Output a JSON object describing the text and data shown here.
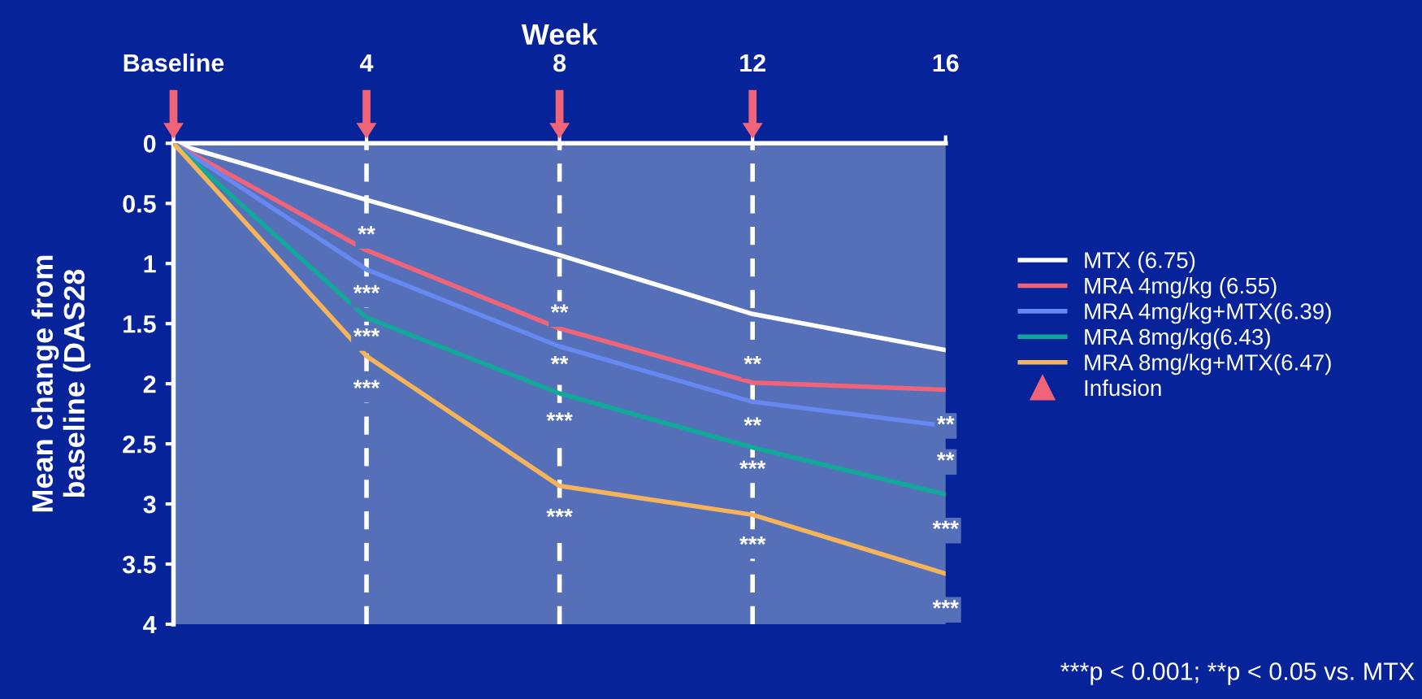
{
  "chart_data": {
    "type": "line",
    "xlabel": "Week",
    "ylabel": "Mean change from\nbaseline (DAS28",
    "x": [
      0,
      4,
      8,
      12,
      16
    ],
    "xlim": [
      0,
      16
    ],
    "xticks": [
      {
        "value": 0,
        "label": "Baseline"
      },
      4,
      8,
      12,
      16
    ],
    "ylim": [
      4,
      0
    ],
    "yticks": [
      0,
      0.5,
      1,
      1.5,
      2,
      2.5,
      3,
      3.5,
      4
    ],
    "grid": false,
    "legend": "right",
    "marker": "none",
    "line_style": "solid",
    "series": [
      {
        "name": "MTX (6.75)",
        "color": "#ffffff",
        "values": [
          0,
          0.47,
          0.93,
          1.42,
          1.72
        ]
      },
      {
        "name": "MRA 4mg/kg (6.55)",
        "color": "#f0647a",
        "values": [
          0,
          0.89,
          1.54,
          1.99,
          2.05
        ]
      },
      {
        "name": "MRA 4mg/kg+MTX(6.39)",
        "color": "#6688f0",
        "values": [
          0,
          1.05,
          1.69,
          2.15,
          2.35
        ]
      },
      {
        "name": "MRA 8mg/kg(6.43)",
        "color": "#10a898",
        "values": [
          0,
          1.45,
          2.08,
          2.53,
          2.92
        ]
      },
      {
        "name": "MRA 8mg/kg+MTX(6.47)",
        "color": "#f5b45a",
        "values": [
          0,
          1.77,
          2.85,
          3.09,
          3.58
        ]
      }
    ],
    "ref_lines": [
      {
        "axis": "x",
        "value": 4,
        "color": "#ffffff",
        "line_style": "dashed"
      },
      {
        "axis": "x",
        "value": 8,
        "color": "#ffffff",
        "line_style": "dashed"
      },
      {
        "axis": "x",
        "value": 12,
        "color": "#ffffff",
        "line_style": "dashed"
      }
    ],
    "annotations": [
      {
        "text": "**",
        "x": 4,
        "y": 0.77
      },
      {
        "text": "***",
        "x": 4,
        "y": 1.26
      },
      {
        "text": "***",
        "x": 4,
        "y": 1.62
      },
      {
        "text": "***",
        "x": 4,
        "y": 2.05
      },
      {
        "text": "**",
        "x": 8,
        "y": 1.42
      },
      {
        "text": "**",
        "x": 8,
        "y": 1.85
      },
      {
        "text": "***",
        "x": 8,
        "y": 2.32
      },
      {
        "text": "***",
        "x": 8,
        "y": 3.12
      },
      {
        "text": "**",
        "x": 12,
        "y": 1.85
      },
      {
        "text": "**",
        "x": 12,
        "y": 2.36
      },
      {
        "text": "***",
        "x": 12,
        "y": 2.72
      },
      {
        "text": "***",
        "x": 12,
        "y": 3.35
      },
      {
        "text": "**",
        "x": 16,
        "y": 2.05
      },
      {
        "text": "**",
        "x": 16,
        "y": 2.35
      },
      {
        "text": "***",
        "x": 16,
        "y": 2.92
      },
      {
        "text": "***",
        "x": 16,
        "y": 3.58
      },
      "Infusion",
      "***p < 0.001; **p < 0.05 vs. MTX"
    ]
  }
}
